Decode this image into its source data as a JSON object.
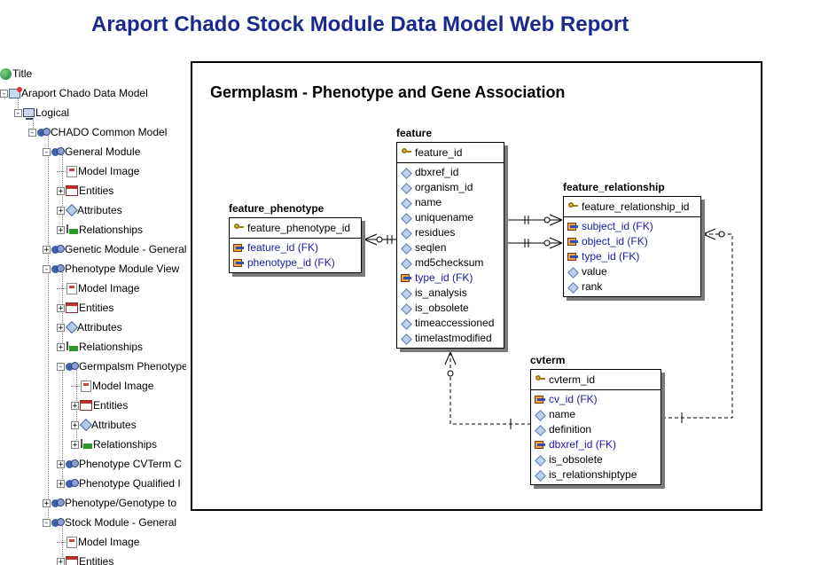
{
  "page": {
    "title": "Araport Chado Stock Module Data Model Web Report"
  },
  "tree": [
    {
      "label": "Title",
      "expander": ""
    },
    {
      "label": "Araport Chado Data Model",
      "expander": "-"
    },
    {
      "label": "Logical",
      "expander": "-"
    },
    {
      "label": "CHADO Common Model",
      "expander": "-"
    },
    {
      "label": "General Module",
      "expander": "-"
    },
    {
      "label": "Model Image",
      "expander": ""
    },
    {
      "label": "Entities",
      "expander": "+"
    },
    {
      "label": "Attributes",
      "expander": "+"
    },
    {
      "label": "Relationships",
      "expander": "+"
    },
    {
      "label": "Genetic Module - General",
      "expander": "+"
    },
    {
      "label": "Phenotype Module View",
      "expander": "-"
    },
    {
      "label": "Model Image",
      "expander": ""
    },
    {
      "label": "Entities",
      "expander": "+"
    },
    {
      "label": "Attributes",
      "expander": "+"
    },
    {
      "label": "Relationships",
      "expander": "+"
    },
    {
      "label": "Germpalsm Phenotype",
      "expander": "-"
    },
    {
      "label": "Model Image",
      "expander": ""
    },
    {
      "label": "Entities",
      "expander": "+"
    },
    {
      "label": "Attributes",
      "expander": "+"
    },
    {
      "label": "Relationships",
      "expander": "+"
    },
    {
      "label": "Phenotype CVTerm C",
      "expander": "+"
    },
    {
      "label": "Phenotype Qualified I",
      "expander": "+"
    },
    {
      "label": "Phenotype/Genotype to",
      "expander": "+"
    },
    {
      "label": "Stock Module - General",
      "expander": "-"
    },
    {
      "label": "Model Image",
      "expander": ""
    },
    {
      "label": "Entities",
      "expander": "+"
    }
  ],
  "diagram": {
    "title": "Germplasm - Phenotype and Gene Association",
    "entities": {
      "feature_phenotype": {
        "name": "feature_phenotype",
        "pk": "feature_phenotype_id",
        "columns": [
          {
            "label": "feature_id (FK)",
            "kind": "fk"
          },
          {
            "label": "phenotype_id (FK)",
            "kind": "fk"
          }
        ]
      },
      "feature": {
        "name": "feature",
        "pk": "feature_id",
        "columns": [
          {
            "label": "dbxref_id",
            "kind": "attr"
          },
          {
            "label": "organism_id",
            "kind": "attr"
          },
          {
            "label": "name",
            "kind": "attr"
          },
          {
            "label": "uniquename",
            "kind": "attr"
          },
          {
            "label": "residues",
            "kind": "attr"
          },
          {
            "label": "seqlen",
            "kind": "attr"
          },
          {
            "label": "md5checksum",
            "kind": "attr"
          },
          {
            "label": "type_id (FK)",
            "kind": "fk"
          },
          {
            "label": "is_analysis",
            "kind": "attr"
          },
          {
            "label": "is_obsolete",
            "kind": "attr"
          },
          {
            "label": "timeaccessioned",
            "kind": "attr"
          },
          {
            "label": "timelastmodified",
            "kind": "attr"
          }
        ]
      },
      "feature_relationship": {
        "name": "feature_relationship",
        "pk": "feature_relationship_id",
        "columns": [
          {
            "label": "subject_id (FK)",
            "kind": "fk"
          },
          {
            "label": "object_id (FK)",
            "kind": "fk"
          },
          {
            "label": "type_id (FK)",
            "kind": "fk"
          },
          {
            "label": "value",
            "kind": "attr"
          },
          {
            "label": "rank",
            "kind": "attr"
          }
        ]
      },
      "cvterm": {
        "name": "cvterm",
        "pk": "cvterm_id",
        "columns": [
          {
            "label": "cv_id (FK)",
            "kind": "fk"
          },
          {
            "label": "name",
            "kind": "attr"
          },
          {
            "label": "definition",
            "kind": "attr"
          },
          {
            "label": "dbxref_id (FK)",
            "kind": "fk"
          },
          {
            "label": "is_obsolete",
            "kind": "attr"
          },
          {
            "label": "is_relationshiptype",
            "kind": "attr"
          }
        ]
      }
    }
  }
}
